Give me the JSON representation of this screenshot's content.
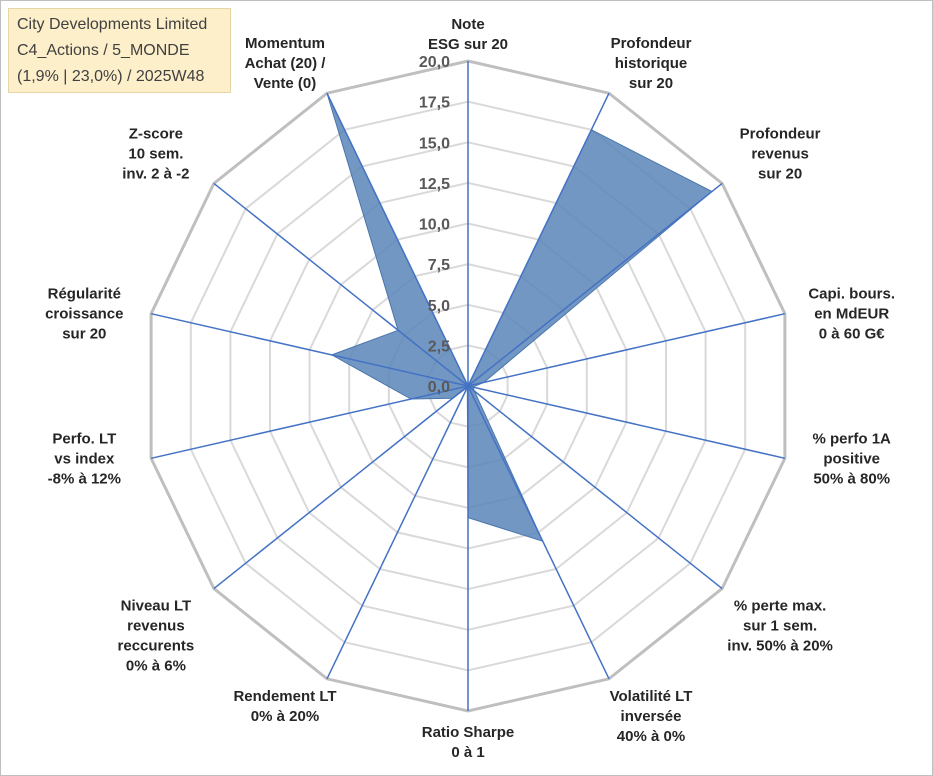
{
  "info": {
    "line1": "City Developments Limited",
    "line2": "C4_Actions / 5_MONDE",
    "line3": "(1,9% | 23,0%) / 2025W48"
  },
  "chart_data": {
    "type": "radar",
    "max": 20,
    "ticks": [
      "0,0",
      "2,5",
      "5,0",
      "7,5",
      "10,0",
      "12,5",
      "15,0",
      "17,5",
      "20,0"
    ],
    "axes": [
      {
        "label": [
          "Note",
          "ESG sur 20"
        ],
        "value": 0
      },
      {
        "label": [
          "Profondeur",
          "historique",
          "sur 20"
        ],
        "value": 17.5
      },
      {
        "label": [
          "Profondeur",
          "revenus",
          "sur 20"
        ],
        "value": 19.2
      },
      {
        "label": [
          "Capi. bours.",
          "en MdEUR",
          "0 à 60 G€"
        ],
        "value": 1.0
      },
      {
        "label": [
          "% perfo 1A",
          "positive",
          "50% à 80%"
        ],
        "value": 0.3
      },
      {
        "label": [
          "% perte max.",
          "sur 1 sem.",
          "inv. 50% à 20%"
        ],
        "value": 0.5
      },
      {
        "label": [
          "Volatilité LT",
          "inversée",
          "40% à 0%"
        ],
        "value": 10.6
      },
      {
        "label": [
          "Ratio Sharpe",
          "0 à 1"
        ],
        "value": 8.1
      },
      {
        "label": [
          "Rendement LT",
          "0% à 20%"
        ],
        "value": 0.1
      },
      {
        "label": [
          "Niveau LT",
          "revenus",
          "reccurents",
          "0% à 6%"
        ],
        "value": 1.2
      },
      {
        "label": [
          "Perfo. LT",
          "vs index",
          "-8% à 12%"
        ],
        "value": 3.6
      },
      {
        "label": [
          "Régularité",
          "croissance",
          "sur 20"
        ],
        "value": 8.6
      },
      {
        "label": [
          "Z-score",
          "10 sem.",
          "inv. 2 à -2"
        ],
        "value": 5.5
      },
      {
        "label": [
          "Momentum",
          "Achat (20) /",
          "Vente (0)"
        ],
        "value": 20
      }
    ],
    "series_color": "#5b85b9",
    "axis_color": "#4472c4",
    "grid_color": "#d9d9d9",
    "outer_ring_color": "#bfbfbf"
  }
}
